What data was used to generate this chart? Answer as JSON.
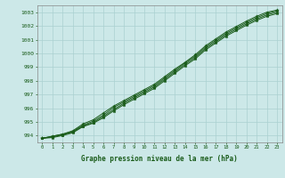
{
  "xlabel": "Graphe pression niveau de la mer (hPa)",
  "background_color": "#cce8e8",
  "grid_color": "#aad0d0",
  "line_color": "#1a5c1a",
  "xlim": [
    -0.5,
    23.5
  ],
  "ylim": [
    993.5,
    1003.5
  ],
  "xticks": [
    0,
    1,
    2,
    3,
    4,
    5,
    6,
    7,
    8,
    9,
    10,
    11,
    12,
    13,
    14,
    15,
    16,
    17,
    18,
    19,
    20,
    21,
    22,
    23
  ],
  "yticks": [
    994,
    995,
    996,
    997,
    998,
    999,
    1000,
    1001,
    1002,
    1003
  ],
  "series": [
    [
      993.8,
      993.95,
      994.1,
      994.35,
      994.85,
      995.15,
      995.65,
      996.15,
      996.55,
      996.95,
      997.35,
      997.75,
      998.3,
      998.85,
      999.35,
      999.9,
      1000.55,
      1001.05,
      1001.55,
      1001.95,
      1002.35,
      1002.7,
      1003.0,
      1003.15
    ],
    [
      993.8,
      993.95,
      994.1,
      994.3,
      994.75,
      995.05,
      995.5,
      996.05,
      996.45,
      996.85,
      997.25,
      997.65,
      998.2,
      998.75,
      999.3,
      999.8,
      1000.45,
      1000.95,
      1001.45,
      1001.85,
      1002.25,
      1002.6,
      1002.9,
      1003.1
    ],
    [
      993.8,
      993.9,
      994.05,
      994.25,
      994.7,
      994.95,
      995.4,
      995.9,
      996.35,
      996.75,
      997.15,
      997.55,
      998.1,
      998.65,
      999.2,
      999.7,
      1000.35,
      1000.85,
      1001.35,
      1001.75,
      1002.15,
      1002.5,
      1002.8,
      1003.0
    ],
    [
      993.8,
      993.85,
      994.0,
      994.2,
      994.65,
      994.9,
      995.3,
      995.8,
      996.25,
      996.65,
      997.05,
      997.45,
      998.0,
      998.55,
      999.1,
      999.6,
      1000.25,
      1000.75,
      1001.25,
      1001.65,
      1002.05,
      1002.4,
      1002.7,
      1002.9
    ]
  ]
}
